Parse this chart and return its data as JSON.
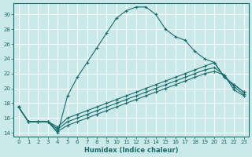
{
  "xlabel": "Humidex (Indice chaleur)",
  "bg_color": "#cce9ea",
  "grid_color": "#b0d4d6",
  "line_color": "#1a6b6b",
  "xlim": [
    -0.5,
    23.5
  ],
  "ylim": [
    13.5,
    31.5
  ],
  "yticks": [
    14,
    16,
    18,
    20,
    22,
    24,
    26,
    28,
    30
  ],
  "xticks": [
    0,
    1,
    2,
    3,
    4,
    5,
    6,
    7,
    8,
    9,
    10,
    11,
    12,
    13,
    14,
    15,
    16,
    17,
    18,
    19,
    20,
    21,
    22,
    23
  ],
  "series": [
    {
      "x": [
        0,
        1,
        2,
        3,
        4,
        5,
        6,
        7,
        8,
        9,
        10,
        11,
        12,
        13,
        14,
        15,
        16,
        17,
        18,
        19,
        20,
        21,
        22,
        23
      ],
      "y": [
        17.5,
        15.5,
        15.5,
        15.5,
        14.0,
        19.0,
        21.5,
        23.5,
        25.5,
        27.5,
        29.5,
        30.5,
        31.0,
        31.0,
        30.0,
        28.0,
        27.0,
        26.5,
        25.0,
        24.0,
        23.5,
        21.5,
        20.5,
        19.5
      ]
    },
    {
      "x": [
        0,
        1,
        2,
        3,
        4,
        5,
        6,
        7,
        8,
        9,
        10,
        11,
        12,
        13,
        14,
        15,
        16,
        17,
        18,
        19,
        20,
        21,
        22,
        23
      ],
      "y": [
        17.5,
        15.5,
        15.5,
        15.5,
        14.8,
        16.0,
        16.5,
        17.0,
        17.5,
        18.0,
        18.5,
        19.0,
        19.5,
        20.0,
        20.5,
        21.0,
        21.5,
        22.0,
        22.5,
        23.0,
        23.5,
        21.5,
        20.5,
        19.5
      ]
    },
    {
      "x": [
        0,
        1,
        2,
        3,
        4,
        5,
        6,
        7,
        8,
        9,
        10,
        11,
        12,
        13,
        14,
        15,
        16,
        17,
        18,
        19,
        20,
        21,
        22,
        23
      ],
      "y": [
        17.5,
        15.5,
        15.5,
        15.5,
        14.5,
        15.5,
        16.0,
        16.5,
        17.0,
        17.5,
        18.0,
        18.5,
        19.0,
        19.5,
        20.0,
        20.5,
        21.0,
        21.5,
        22.0,
        22.5,
        22.8,
        21.8,
        20.2,
        19.2
      ]
    },
    {
      "x": [
        0,
        1,
        2,
        3,
        4,
        5,
        6,
        7,
        8,
        9,
        10,
        11,
        12,
        13,
        14,
        15,
        16,
        17,
        18,
        19,
        20,
        21,
        22,
        23
      ],
      "y": [
        17.5,
        15.5,
        15.5,
        15.5,
        14.2,
        15.0,
        15.5,
        16.0,
        16.5,
        17.0,
        17.5,
        18.0,
        18.5,
        19.0,
        19.5,
        20.0,
        20.5,
        21.0,
        21.5,
        22.0,
        22.3,
        21.8,
        19.8,
        19.0
      ]
    }
  ]
}
